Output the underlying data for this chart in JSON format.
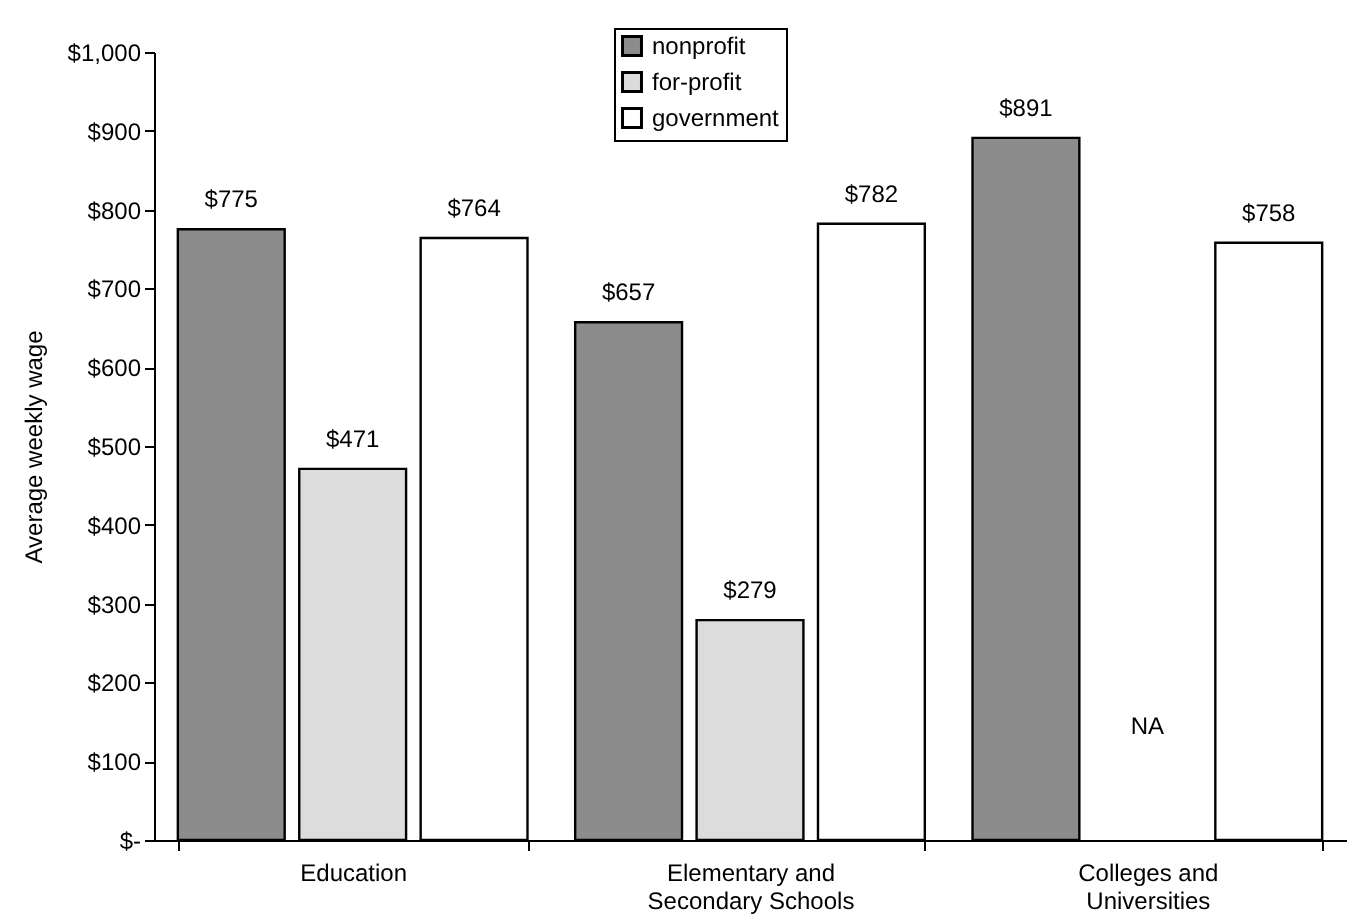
{
  "chart_data": {
    "type": "bar",
    "ylabel": "Average weekly wage",
    "categories": [
      "Education",
      "Elementary and Secondary Schools",
      "Colleges and Universities"
    ],
    "series": [
      {
        "name": "nonprofit",
        "color": "#8c8c8c",
        "values": [
          775,
          657,
          891
        ],
        "value_labels": [
          "$775",
          "$657",
          "$891"
        ]
      },
      {
        "name": "for-profit",
        "color": "#dcdcdc",
        "values": [
          471,
          279,
          null
        ],
        "value_labels": [
          "$471",
          "$279",
          "NA"
        ]
      },
      {
        "name": "government",
        "color": "#ffffff",
        "values": [
          764,
          782,
          758
        ],
        "value_labels": [
          "$764",
          "$782",
          "$758"
        ]
      }
    ],
    "ylim": [
      0,
      1000
    ],
    "yticks": [
      {
        "value": 0,
        "label": "$-"
      },
      {
        "value": 100,
        "label": "$100"
      },
      {
        "value": 200,
        "label": "$200"
      },
      {
        "value": 300,
        "label": "$300"
      },
      {
        "value": 400,
        "label": "$400"
      },
      {
        "value": 500,
        "label": "$500"
      },
      {
        "value": 600,
        "label": "$600"
      },
      {
        "value": 700,
        "label": "$700"
      },
      {
        "value": 800,
        "label": "$800"
      },
      {
        "value": 900,
        "label": "$900"
      },
      {
        "value": 1000,
        "label": "$1,000"
      }
    ],
    "grid": false,
    "legend": "top"
  }
}
